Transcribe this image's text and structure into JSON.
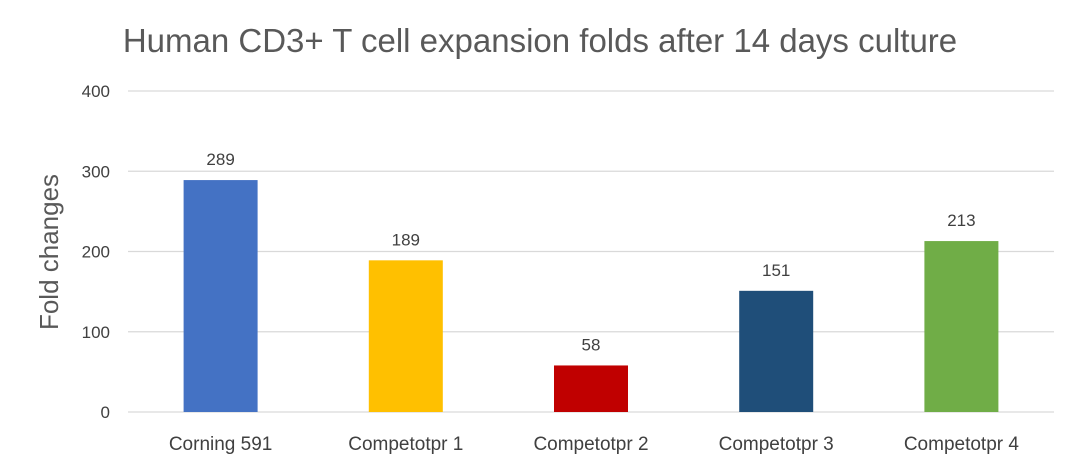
{
  "chart_data": {
    "type": "bar",
    "title": "Human CD3+ T cell expansion folds after 14 days culture",
    "xlabel": "",
    "ylabel": "Fold changes",
    "categories": [
      "Corning 591",
      "Competotpr 1",
      "Competotpr 2",
      "Competotpr 3",
      "Competotpr 4"
    ],
    "values": [
      289,
      189,
      58,
      151,
      213
    ],
    "data_labels": [
      "289",
      "189",
      "58",
      "151",
      "213"
    ],
    "colors": [
      "#4472C4",
      "#FFC000",
      "#C00000",
      "#1F4E79",
      "#70AD47"
    ],
    "ylim": [
      0,
      400
    ],
    "yticks": [
      0,
      100,
      200,
      300,
      400
    ],
    "ytick_labels": [
      "0",
      "100",
      "200",
      "300",
      "400"
    ],
    "grid": true,
    "gridline_color": "#D9D9D9",
    "legend": "none"
  }
}
